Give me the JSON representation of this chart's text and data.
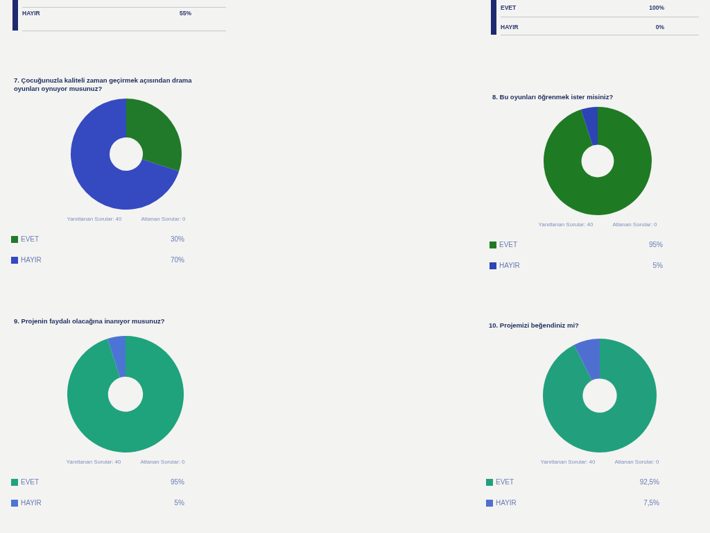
{
  "chart_data": [
    {
      "type": "other",
      "annotations": [
        "HAYIR",
        "55%"
      ]
    },
    {
      "type": "other",
      "annotations": [
        "EVET",
        "100%",
        "HAYIR",
        "0%"
      ]
    },
    {
      "type": "donut",
      "title": "7. Çocuğunuzla kaliteli zaman geçirmek açısından drama oyunları oynuyor musunuz?",
      "categories": [
        "EVET",
        "HAYIR"
      ],
      "values": [
        30,
        70
      ],
      "colors": [
        "#217a2a",
        "#3549c0"
      ],
      "value_labels": [
        "30%",
        "70%"
      ],
      "legend": "bottom",
      "annotations": [
        "Yanıtlanan Sorular: 40",
        "Atlanan Sorular: 0"
      ]
    },
    {
      "type": "donut",
      "title": "8. Bu oyunları öğrenmek ister misiniz?",
      "categories": [
        "EVET",
        "HAYIR"
      ],
      "values": [
        95,
        5
      ],
      "colors": [
        "#1f7a24",
        "#2d44b5"
      ],
      "value_labels": [
        "95%",
        "5%"
      ],
      "legend": "bottom",
      "annotations": [
        "Yanıtlanan Sorular: 40",
        "Atlanan Sorular: 0"
      ]
    },
    {
      "type": "donut",
      "title": "9. Projenin faydalı olacağına inanıyor musunuz?",
      "categories": [
        "EVET",
        "HAYIR"
      ],
      "values": [
        95,
        5
      ],
      "colors": [
        "#1fa37c",
        "#4c74d4"
      ],
      "value_labels": [
        "95%",
        "5%"
      ],
      "legend": "bottom",
      "annotations": [
        "Yanıtlanan Sorular: 40",
        "Atlanan Sorular: 0"
      ]
    },
    {
      "type": "donut",
      "title": "10. Projemizi beğendiniz mi?",
      "categories": [
        "EVET",
        "HAYIR"
      ],
      "values": [
        92.5,
        7.5
      ],
      "colors": [
        "#22a07e",
        "#4f6fd0"
      ],
      "value_labels": [
        "92,5%",
        "7,5%"
      ],
      "legend": "bottom",
      "annotations": [
        "Yanıtlanan Sorular: 40",
        "Atlanan Sorular: 0"
      ]
    }
  ]
}
